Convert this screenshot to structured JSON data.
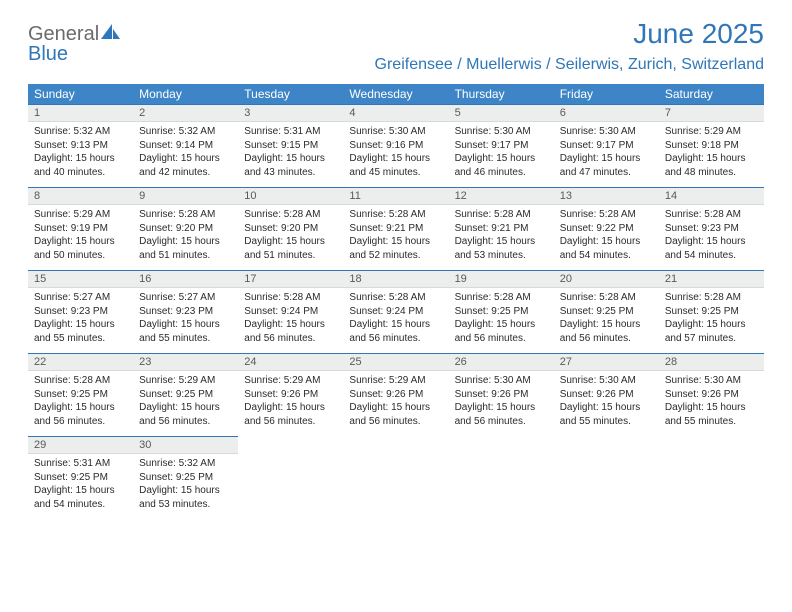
{
  "brand": {
    "word1": "General",
    "word2": "Blue"
  },
  "title": "June 2025",
  "location": "Greifensee / Muellerwis / Seilerwis, Zurich, Switzerland",
  "colors": {
    "header_bg": "#3d85c6",
    "accent": "#2f77b8",
    "daynum_bg": "#eceded",
    "text": "#2b2b2b",
    "logo_gray": "#6b6b6b"
  },
  "fonts": {
    "title_size": 28,
    "location_size": 16,
    "header_size": 12,
    "daynum_size": 11,
    "body_size": 10
  },
  "weekdays": [
    "Sunday",
    "Monday",
    "Tuesday",
    "Wednesday",
    "Thursday",
    "Friday",
    "Saturday"
  ],
  "weeks": [
    [
      {
        "n": "1",
        "sunrise": "5:32 AM",
        "sunset": "9:13 PM",
        "daylight": "15 hours and 40 minutes."
      },
      {
        "n": "2",
        "sunrise": "5:32 AM",
        "sunset": "9:14 PM",
        "daylight": "15 hours and 42 minutes."
      },
      {
        "n": "3",
        "sunrise": "5:31 AM",
        "sunset": "9:15 PM",
        "daylight": "15 hours and 43 minutes."
      },
      {
        "n": "4",
        "sunrise": "5:30 AM",
        "sunset": "9:16 PM",
        "daylight": "15 hours and 45 minutes."
      },
      {
        "n": "5",
        "sunrise": "5:30 AM",
        "sunset": "9:17 PM",
        "daylight": "15 hours and 46 minutes."
      },
      {
        "n": "6",
        "sunrise": "5:30 AM",
        "sunset": "9:17 PM",
        "daylight": "15 hours and 47 minutes."
      },
      {
        "n": "7",
        "sunrise": "5:29 AM",
        "sunset": "9:18 PM",
        "daylight": "15 hours and 48 minutes."
      }
    ],
    [
      {
        "n": "8",
        "sunrise": "5:29 AM",
        "sunset": "9:19 PM",
        "daylight": "15 hours and 50 minutes."
      },
      {
        "n": "9",
        "sunrise": "5:28 AM",
        "sunset": "9:20 PM",
        "daylight": "15 hours and 51 minutes."
      },
      {
        "n": "10",
        "sunrise": "5:28 AM",
        "sunset": "9:20 PM",
        "daylight": "15 hours and 51 minutes."
      },
      {
        "n": "11",
        "sunrise": "5:28 AM",
        "sunset": "9:21 PM",
        "daylight": "15 hours and 52 minutes."
      },
      {
        "n": "12",
        "sunrise": "5:28 AM",
        "sunset": "9:21 PM",
        "daylight": "15 hours and 53 minutes."
      },
      {
        "n": "13",
        "sunrise": "5:28 AM",
        "sunset": "9:22 PM",
        "daylight": "15 hours and 54 minutes."
      },
      {
        "n": "14",
        "sunrise": "5:28 AM",
        "sunset": "9:23 PM",
        "daylight": "15 hours and 54 minutes."
      }
    ],
    [
      {
        "n": "15",
        "sunrise": "5:27 AM",
        "sunset": "9:23 PM",
        "daylight": "15 hours and 55 minutes."
      },
      {
        "n": "16",
        "sunrise": "5:27 AM",
        "sunset": "9:23 PM",
        "daylight": "15 hours and 55 minutes."
      },
      {
        "n": "17",
        "sunrise": "5:28 AM",
        "sunset": "9:24 PM",
        "daylight": "15 hours and 56 minutes."
      },
      {
        "n": "18",
        "sunrise": "5:28 AM",
        "sunset": "9:24 PM",
        "daylight": "15 hours and 56 minutes."
      },
      {
        "n": "19",
        "sunrise": "5:28 AM",
        "sunset": "9:25 PM",
        "daylight": "15 hours and 56 minutes."
      },
      {
        "n": "20",
        "sunrise": "5:28 AM",
        "sunset": "9:25 PM",
        "daylight": "15 hours and 56 minutes."
      },
      {
        "n": "21",
        "sunrise": "5:28 AM",
        "sunset": "9:25 PM",
        "daylight": "15 hours and 57 minutes."
      }
    ],
    [
      {
        "n": "22",
        "sunrise": "5:28 AM",
        "sunset": "9:25 PM",
        "daylight": "15 hours and 56 minutes."
      },
      {
        "n": "23",
        "sunrise": "5:29 AM",
        "sunset": "9:25 PM",
        "daylight": "15 hours and 56 minutes."
      },
      {
        "n": "24",
        "sunrise": "5:29 AM",
        "sunset": "9:26 PM",
        "daylight": "15 hours and 56 minutes."
      },
      {
        "n": "25",
        "sunrise": "5:29 AM",
        "sunset": "9:26 PM",
        "daylight": "15 hours and 56 minutes."
      },
      {
        "n": "26",
        "sunrise": "5:30 AM",
        "sunset": "9:26 PM",
        "daylight": "15 hours and 56 minutes."
      },
      {
        "n": "27",
        "sunrise": "5:30 AM",
        "sunset": "9:26 PM",
        "daylight": "15 hours and 55 minutes."
      },
      {
        "n": "28",
        "sunrise": "5:30 AM",
        "sunset": "9:26 PM",
        "daylight": "15 hours and 55 minutes."
      }
    ],
    [
      {
        "n": "29",
        "sunrise": "5:31 AM",
        "sunset": "9:25 PM",
        "daylight": "15 hours and 54 minutes."
      },
      {
        "n": "30",
        "sunrise": "5:32 AM",
        "sunset": "9:25 PM",
        "daylight": "15 hours and 53 minutes."
      },
      null,
      null,
      null,
      null,
      null
    ]
  ],
  "labels": {
    "sunrise": "Sunrise: ",
    "sunset": "Sunset: ",
    "daylight": "Daylight: "
  }
}
